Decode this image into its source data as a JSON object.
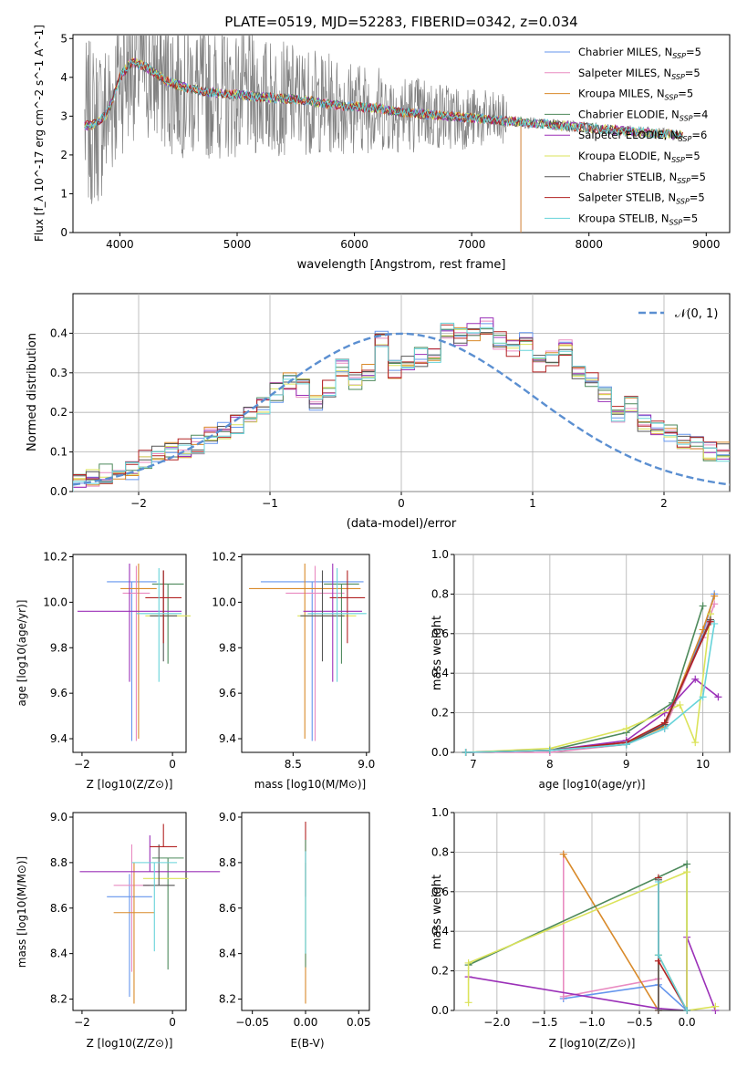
{
  "title": "PLATE=0519, MJD=52283, FIBERID=0342, z=0.034",
  "colors": {
    "chabrier_miles": "#6495ed",
    "salpeter_miles": "#e98bc1",
    "kroupa_miles": "#d98a2a",
    "chabrier_elodie": "#4e8a5c",
    "salpeter_elodie": "#9b30b8",
    "kroupa_elodie": "#dbe35a",
    "chabrier_stelib": "#555555",
    "salpeter_stelib": "#b22222",
    "kroupa_stelib": "#66d3d9",
    "data": "#808080",
    "normal": "#5b8fd1",
    "grid": "#b0b0b0"
  },
  "chart_data": [
    {
      "type": "line",
      "panel": "spectrum",
      "xlabel": "wavelength [Angstrom, rest frame]",
      "ylabel": "Flux [f_λ 10^-17 erg cm^-2 s^-1 A^-1]",
      "xlim": [
        3600,
        9200
      ],
      "ylim": [
        0,
        5.1
      ],
      "xticks": [
        4000,
        5000,
        6000,
        7000,
        8000,
        9000
      ],
      "yticks": [
        0,
        1,
        2,
        3,
        4,
        5
      ],
      "grid": false,
      "legend_position": "upper-right",
      "legend": [
        {
          "main": "Chabrier MILES, N",
          "sub": "SSP",
          "tail": "=5",
          "color_key": "chabrier_miles"
        },
        {
          "main": "Salpeter MILES, N",
          "sub": "SSP",
          "tail": "=5",
          "color_key": "salpeter_miles"
        },
        {
          "main": "Kroupa MILES, N",
          "sub": "SSP",
          "tail": "=5",
          "color_key": "kroupa_miles"
        },
        {
          "main": "Chabrier ELODIE, N",
          "sub": "SSP",
          "tail": "=4",
          "color_key": "chabrier_elodie"
        },
        {
          "main": "Salpeter ELODIE, N",
          "sub": "SSP",
          "tail": "=6",
          "color_key": "salpeter_elodie"
        },
        {
          "main": "Kroupa ELODIE, N",
          "sub": "SSP",
          "tail": "=5",
          "color_key": "kroupa_elodie"
        },
        {
          "main": "Chabrier STELIB, N",
          "sub": "SSP",
          "tail": "=5",
          "color_key": "chabrier_stelib"
        },
        {
          "main": "Salpeter STELIB, N",
          "sub": "SSP",
          "tail": "=5",
          "color_key": "salpeter_stelib"
        },
        {
          "main": "Kroupa STELIB, N",
          "sub": "SSP",
          "tail": "=5",
          "color_key": "kroupa_stelib"
        }
      ],
      "model_continuum": {
        "x": [
          3700,
          3800,
          3900,
          4000,
          4100,
          4200,
          4300,
          4400,
          4500,
          4600,
          4800,
          5000,
          5200,
          5400,
          5600,
          5800,
          6000,
          6200,
          6400,
          6600,
          6800,
          7000,
          7200,
          7400,
          7600,
          7800,
          8000,
          8200,
          8400,
          8600,
          8800,
          9000
        ],
        "y": [
          2.75,
          2.8,
          3.1,
          4.0,
          4.4,
          4.3,
          4.1,
          3.9,
          3.8,
          3.7,
          3.6,
          3.55,
          3.5,
          3.45,
          3.4,
          3.3,
          3.25,
          3.2,
          3.1,
          3.05,
          3.0,
          2.95,
          2.9,
          2.85,
          2.8,
          2.75,
          2.7,
          2.65,
          2.6,
          2.55,
          2.5,
          2.45
        ]
      }
    },
    {
      "type": "bar",
      "panel": "residuals",
      "xlabel": "(data-model)/error",
      "ylabel": "Normed distribution",
      "xlim": [
        -2.5,
        2.5
      ],
      "ylim": [
        0,
        0.5
      ],
      "xticks": [
        -2,
        -1,
        0,
        1,
        2
      ],
      "yticks": [
        0.0,
        0.1,
        0.2,
        0.3,
        0.4
      ],
      "grid": true,
      "legend_position": "upper-right",
      "legend": [
        {
          "label": "𝒩(0, 1)",
          "color_key": "normal"
        }
      ],
      "bin_width": 0.1,
      "bin_start": -2.5,
      "mean_histogram": [
        0.03,
        0.035,
        0.045,
        0.05,
        0.055,
        0.08,
        0.09,
        0.1,
        0.11,
        0.12,
        0.14,
        0.15,
        0.17,
        0.19,
        0.22,
        0.25,
        0.28,
        0.26,
        0.23,
        0.26,
        0.31,
        0.28,
        0.3,
        0.38,
        0.31,
        0.33,
        0.34,
        0.35,
        0.41,
        0.39,
        0.4,
        0.42,
        0.38,
        0.36,
        0.38,
        0.32,
        0.33,
        0.36,
        0.3,
        0.28,
        0.24,
        0.2,
        0.22,
        0.17,
        0.16,
        0.15,
        0.12,
        0.12,
        0.1,
        0.1
      ],
      "normal_curve": {
        "mean": 0,
        "sigma": 1
      }
    },
    {
      "type": "scatter",
      "panel": "age-vs-Z",
      "xlabel": "Z [log10(Z/Z⊙)]",
      "ylabel": "age [log10(age/yr)]",
      "xlim": [
        -2.2,
        0.3
      ],
      "ylim": [
        9.34,
        10.21
      ],
      "xticks": [
        -2,
        0
      ],
      "yticks": [
        9.4,
        9.6,
        9.8,
        10.0,
        10.2
      ],
      "points": [
        {
          "color_key": "chabrier_miles",
          "x": -0.9,
          "y": 10.09,
          "xerr": 0.55,
          "yerr": [
            0.7,
            0.0
          ]
        },
        {
          "color_key": "salpeter_miles",
          "x": -0.8,
          "y": 10.04,
          "xerr": 0.3,
          "yerr": [
            0.65,
            0.12
          ]
        },
        {
          "color_key": "kroupa_miles",
          "x": -0.75,
          "y": 10.06,
          "xerr": 0.4,
          "yerr": [
            0.66,
            0.11
          ]
        },
        {
          "color_key": "chabrier_elodie",
          "x": -0.1,
          "y": 10.08,
          "xerr": 0.35,
          "yerr": [
            0.35,
            0.0
          ]
        },
        {
          "color_key": "salpeter_elodie",
          "x": -0.95,
          "y": 9.96,
          "xerr": 1.15,
          "yerr": [
            0.31,
            0.21
          ]
        },
        {
          "color_key": "kroupa_elodie",
          "x": -0.1,
          "y": 9.94,
          "xerr": 0.5,
          "yerr": [
            0.0,
            0.0
          ]
        },
        {
          "color_key": "chabrier_stelib",
          "x": -0.2,
          "y": 9.94,
          "xerr": 0.3,
          "yerr": [
            0.2,
            0.2
          ]
        },
        {
          "color_key": "salpeter_stelib",
          "x": -0.2,
          "y": 10.02,
          "xerr": 0.4,
          "yerr": [
            0.2,
            0.12
          ]
        },
        {
          "color_key": "kroupa_stelib",
          "x": -0.3,
          "y": 9.95,
          "xerr": 0.5,
          "yerr": [
            0.3,
            0.2
          ]
        }
      ]
    },
    {
      "type": "scatter",
      "panel": "age-vs-mass",
      "xlabel": "mass [log10(M/M⊙)]",
      "ylabel": "",
      "xlim": [
        8.15,
        9.02
      ],
      "ylim": [
        9.34,
        10.21
      ],
      "xticks": [
        8.5,
        9.0
      ],
      "yticks": [
        9.4,
        9.6,
        9.8,
        10.0,
        10.2
      ],
      "points": [
        {
          "color_key": "chabrier_miles",
          "x": 8.63,
          "y": 10.09,
          "xerr": 0.35,
          "yerr": [
            0.7,
            0.0
          ]
        },
        {
          "color_key": "salpeter_miles",
          "x": 8.65,
          "y": 10.04,
          "xerr": 0.2,
          "yerr": [
            0.65,
            0.12
          ]
        },
        {
          "color_key": "kroupa_miles",
          "x": 8.58,
          "y": 10.06,
          "xerr": 0.38,
          "yerr": [
            0.66,
            0.11
          ]
        },
        {
          "color_key": "chabrier_elodie",
          "x": 8.83,
          "y": 10.08,
          "xerr": 0.12,
          "yerr": [
            0.35,
            0.0
          ]
        },
        {
          "color_key": "salpeter_elodie",
          "x": 8.77,
          "y": 9.96,
          "xerr": 0.2,
          "yerr": [
            0.31,
            0.21
          ]
        },
        {
          "color_key": "kroupa_elodie",
          "x": 8.73,
          "y": 9.94,
          "xerr": 0.2,
          "yerr": [
            0.0,
            0.0
          ]
        },
        {
          "color_key": "chabrier_stelib",
          "x": 8.7,
          "y": 9.94,
          "xerr": 0.15,
          "yerr": [
            0.2,
            0.2
          ]
        },
        {
          "color_key": "salpeter_stelib",
          "x": 8.87,
          "y": 10.02,
          "xerr": 0.12,
          "yerr": [
            0.2,
            0.12
          ]
        },
        {
          "color_key": "kroupa_stelib",
          "x": 8.8,
          "y": 9.95,
          "xerr": 0.2,
          "yerr": [
            0.3,
            0.2
          ]
        }
      ]
    },
    {
      "type": "line",
      "panel": "mass-weight-vs-age",
      "xlabel": "age [log10(age/yr)]",
      "ylabel": "mass weight",
      "xlim": [
        6.75,
        10.35
      ],
      "ylim": [
        0,
        1.0
      ],
      "xticks": [
        7,
        8,
        9,
        10
      ],
      "yticks": [
        0.0,
        0.2,
        0.4,
        0.6,
        0.8,
        1.0
      ],
      "grid": true,
      "series": [
        {
          "color_key": "chabrier_miles",
          "x": [
            6.9,
            8.0,
            9.0,
            9.5,
            10.0,
            10.15
          ],
          "y": [
            0.0,
            0.01,
            0.05,
            0.14,
            0.6,
            0.8
          ]
        },
        {
          "color_key": "salpeter_miles",
          "x": [
            6.9,
            8.0,
            9.0,
            9.5,
            10.0,
            10.15
          ],
          "y": [
            0.0,
            0.0,
            0.04,
            0.12,
            0.58,
            0.75
          ]
        },
        {
          "color_key": "kroupa_miles",
          "x": [
            6.9,
            8.0,
            9.0,
            9.5,
            10.0,
            10.15
          ],
          "y": [
            0.0,
            0.01,
            0.05,
            0.13,
            0.62,
            0.79
          ]
        },
        {
          "color_key": "chabrier_elodie",
          "x": [
            6.9,
            8.0,
            9.0,
            9.6,
            10.0
          ],
          "y": [
            0.0,
            0.01,
            0.1,
            0.25,
            0.74
          ]
        },
        {
          "color_key": "salpeter_elodie",
          "x": [
            6.9,
            8.0,
            9.0,
            9.5,
            9.9,
            10.2
          ],
          "y": [
            0.0,
            0.01,
            0.06,
            0.2,
            0.37,
            0.28
          ]
        },
        {
          "color_key": "kroupa_elodie",
          "x": [
            6.9,
            8.0,
            9.0,
            9.7,
            9.9,
            10.1
          ],
          "y": [
            0.0,
            0.02,
            0.12,
            0.24,
            0.05,
            0.7
          ]
        },
        {
          "color_key": "chabrier_stelib",
          "x": [
            6.9,
            8.0,
            9.0,
            9.5,
            10.1
          ],
          "y": [
            0.0,
            0.01,
            0.04,
            0.14,
            0.67
          ]
        },
        {
          "color_key": "salpeter_stelib",
          "x": [
            6.9,
            8.0,
            9.0,
            9.5,
            10.1
          ],
          "y": [
            0.0,
            0.01,
            0.05,
            0.15,
            0.66
          ]
        },
        {
          "color_key": "kroupa_stelib",
          "x": [
            6.9,
            8.0,
            9.0,
            9.5,
            10.0,
            10.15
          ],
          "y": [
            0.0,
            0.01,
            0.04,
            0.12,
            0.28,
            0.65
          ]
        }
      ]
    },
    {
      "type": "scatter",
      "panel": "mass-vs-Z",
      "xlabel": "Z [log10(Z/Z⊙)]",
      "ylabel": "mass [log10(M/M⊙)]",
      "xlim": [
        -2.2,
        0.3
      ],
      "ylim": [
        8.15,
        9.02
      ],
      "xticks": [
        -2,
        0
      ],
      "yticks": [
        8.2,
        8.4,
        8.6,
        8.8,
        9.0
      ],
      "points": [
        {
          "color_key": "chabrier_miles",
          "x": -0.95,
          "y": 8.65,
          "xerr": 0.5,
          "yerr": [
            0.44,
            0.1
          ]
        },
        {
          "color_key": "salpeter_miles",
          "x": -0.9,
          "y": 8.7,
          "xerr": 0.4,
          "yerr": [
            0.38,
            0.18
          ]
        },
        {
          "color_key": "kroupa_miles",
          "x": -0.85,
          "y": 8.58,
          "xerr": 0.45,
          "yerr": [
            0.4,
            0.22
          ]
        },
        {
          "color_key": "chabrier_elodie",
          "x": -0.1,
          "y": 8.82,
          "xerr": 0.35,
          "yerr": [
            0.49,
            0.0
          ]
        },
        {
          "color_key": "salpeter_elodie",
          "x": -0.5,
          "y": 8.76,
          "xerr": 1.55,
          "yerr": [
            0.0,
            0.16
          ]
        },
        {
          "color_key": "kroupa_elodie",
          "x": -0.15,
          "y": 8.73,
          "xerr": 0.5,
          "yerr": [
            0.0,
            0.0
          ]
        },
        {
          "color_key": "chabrier_stelib",
          "x": -0.3,
          "y": 8.7,
          "xerr": 0.35,
          "yerr": [
            0.0,
            0.18
          ]
        },
        {
          "color_key": "salpeter_stelib",
          "x": -0.2,
          "y": 8.87,
          "xerr": 0.3,
          "yerr": [
            0.0,
            0.1
          ]
        },
        {
          "color_key": "kroupa_stelib",
          "x": -0.4,
          "y": 8.8,
          "xerr": 0.5,
          "yerr": [
            0.39,
            0.0
          ]
        }
      ]
    },
    {
      "type": "scatter",
      "panel": "mass-vs-ebv",
      "xlabel": "E(B-V)",
      "ylabel": "",
      "xlim": [
        -0.06,
        0.06
      ],
      "ylim": [
        8.15,
        9.02
      ],
      "xticks": [
        -0.05,
        0.0,
        0.05
      ],
      "yticks": [
        8.2,
        8.4,
        8.6,
        8.8,
        9.0
      ],
      "points": [
        {
          "color_key": "kroupa_miles",
          "x": 0.0,
          "y": 8.6,
          "xerr": 0.0,
          "yerr": [
            0.42,
            0.2
          ]
        },
        {
          "color_key": "salpeter_stelib",
          "x": 0.0,
          "y": 8.85,
          "xerr": 0.0,
          "yerr": [
            0.2,
            0.13
          ]
        },
        {
          "color_key": "chabrier_elodie",
          "x": 0.0,
          "y": 8.7,
          "xerr": 0.0,
          "yerr": [
            0.36,
            0.2
          ]
        },
        {
          "color_key": "kroupa_stelib",
          "x": 0.0,
          "y": 8.7,
          "xerr": 0.0,
          "yerr": [
            0.3,
            0.15
          ]
        }
      ]
    },
    {
      "type": "line",
      "panel": "mass-weight-vs-Z",
      "xlabel": "Z [log10(Z/Z⊙)]",
      "ylabel": "mass weight",
      "xlim": [
        -2.45,
        0.45
      ],
      "ylim": [
        0,
        1.0
      ],
      "xticks": [
        -2.0,
        -1.5,
        -1.0,
        -0.5,
        0.0
      ],
      "yticks": [
        0.0,
        0.2,
        0.4,
        0.6,
        0.8,
        1.0
      ],
      "grid": true,
      "series": [
        {
          "color_key": "chabrier_miles",
          "x": [
            -1.3,
            -0.3,
            0.0
          ],
          "y": [
            0.06,
            0.13,
            0.0
          ]
        },
        {
          "color_key": "salpeter_miles",
          "x": [
            -1.3,
            -1.3,
            -0.3,
            -0.3
          ],
          "y": [
            0.79,
            0.07,
            0.16,
            0.0
          ]
        },
        {
          "color_key": "kroupa_miles",
          "x": [
            -1.3,
            -0.3,
            -0.3,
            0.0
          ],
          "y": [
            0.79,
            0.0,
            0.28,
            0.0
          ]
        },
        {
          "color_key": "chabrier_elodie",
          "x": [
            -2.3,
            0.0,
            0.0
          ],
          "y": [
            0.23,
            0.74,
            0.0
          ]
        },
        {
          "color_key": "salpeter_elodie",
          "x": [
            -2.3,
            -0.3,
            0.0,
            0.0,
            0.3
          ],
          "y": [
            0.17,
            0.01,
            0.0,
            0.37,
            0.0
          ]
        },
        {
          "color_key": "kroupa_elodie",
          "x": [
            -2.3,
            -2.3,
            0.0,
            0.0,
            0.3
          ],
          "y": [
            0.04,
            0.24,
            0.7,
            0.0,
            0.02
          ]
        },
        {
          "color_key": "chabrier_stelib",
          "x": [
            -0.3,
            -0.3,
            0.0
          ],
          "y": [
            0.66,
            0.0,
            0.0
          ]
        },
        {
          "color_key": "salpeter_stelib",
          "x": [
            -0.3,
            -0.3,
            0.0
          ],
          "y": [
            0.67,
            0.25,
            0.0
          ]
        },
        {
          "color_key": "kroupa_stelib",
          "x": [
            -0.3,
            -0.3,
            0.0
          ],
          "y": [
            0.65,
            0.28,
            0.0
          ]
        }
      ]
    }
  ]
}
